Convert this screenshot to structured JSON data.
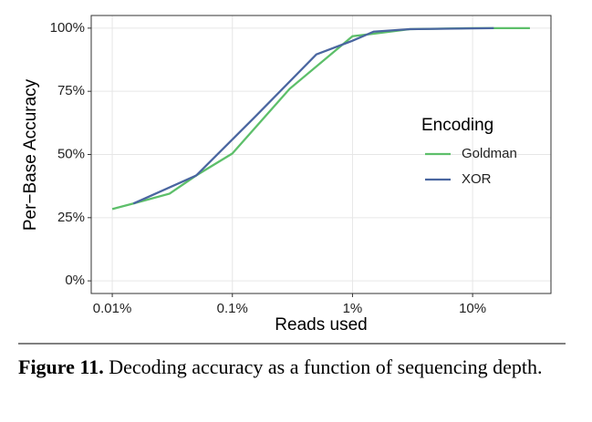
{
  "chart_data": {
    "type": "line",
    "x_label": "Reads used",
    "y_label": "Per−Base Accuracy",
    "log_x": true,
    "grid": true,
    "xlim": [
      0.00668,
      44.9
    ],
    "ylim": [
      -5,
      105
    ],
    "xticks": [
      {
        "value": 0.01,
        "label": "0.01%"
      },
      {
        "value": 0.1,
        "label": "0.1%"
      },
      {
        "value": 1,
        "label": "1%"
      },
      {
        "value": 10,
        "label": "10%"
      }
    ],
    "yticks": [
      {
        "value": 0,
        "label": "0%"
      },
      {
        "value": 25,
        "label": "25%"
      },
      {
        "value": 50,
        "label": "50%"
      },
      {
        "value": 75,
        "label": "75%"
      },
      {
        "value": 100,
        "label": "100%"
      }
    ],
    "legend_title": "Encoding",
    "legend_position": "right",
    "series": [
      {
        "name": "Goldman",
        "color": "#5dbf6a",
        "x": [
          0.01,
          0.015,
          0.03,
          0.05,
          0.1,
          0.3,
          1,
          1.5,
          3,
          10,
          30
        ],
        "values": [
          28.4,
          30.6,
          34.5,
          41.7,
          50.4,
          76,
          96.8,
          97.8,
          99.6,
          100,
          100
        ]
      },
      {
        "name": "XOR",
        "color": "#4a66a0",
        "x": [
          0.015,
          0.05,
          0.15,
          0.5,
          1,
          1.5,
          3,
          15
        ],
        "values": [
          30.6,
          41.7,
          64.3,
          89.6,
          95,
          98.6,
          99.6,
          100
        ]
      }
    ]
  },
  "caption": {
    "label": "Figure 11.",
    "text": "Decoding accuracy as a function of sequencing depth."
  }
}
